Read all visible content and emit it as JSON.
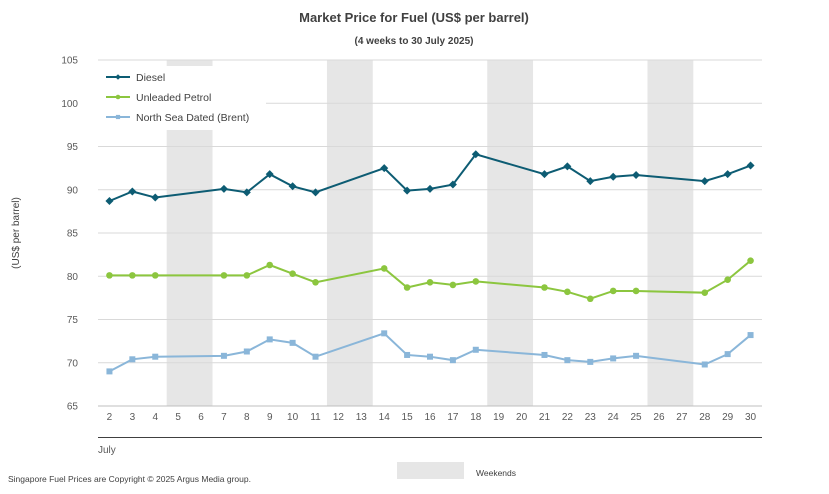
{
  "chart_data": {
    "type": "line",
    "title": "Market Price for Fuel (US$ per barrel)",
    "subtitle": "(4 weeks to 30 July 2025)",
    "ylabel": "(US$ per barrel)",
    "xlabel": "July",
    "ylim": [
      65,
      105
    ],
    "yticks": [
      65,
      70,
      75,
      80,
      85,
      90,
      95,
      100,
      105
    ],
    "xticks": [
      2,
      3,
      4,
      5,
      6,
      7,
      8,
      9,
      10,
      11,
      12,
      13,
      14,
      15,
      16,
      17,
      18,
      19,
      20,
      21,
      22,
      23,
      24,
      25,
      26,
      27,
      28,
      29,
      30
    ],
    "weekends": [
      [
        5,
        6
      ],
      [
        12,
        13
      ],
      [
        19,
        20
      ],
      [
        26,
        27
      ]
    ],
    "grid": true,
    "legend_position": "top-left",
    "series": [
      {
        "name": "Diesel",
        "color": "#0d5c73",
        "marker": "diamond",
        "x": [
          2,
          3,
          4,
          7,
          8,
          9,
          10,
          11,
          14,
          15,
          16,
          17,
          18,
          21,
          22,
          23,
          24,
          25,
          28,
          29,
          30
        ],
        "values": [
          88.7,
          89.8,
          89.1,
          90.1,
          89.7,
          91.8,
          90.4,
          89.7,
          92.5,
          89.9,
          90.1,
          90.6,
          94.1,
          91.8,
          92.7,
          91.0,
          91.5,
          91.7,
          91.0,
          91.8,
          92.8
        ]
      },
      {
        "name": "Unleaded Petrol",
        "color": "#8cc63f",
        "marker": "circle",
        "x": [
          2,
          3,
          4,
          7,
          8,
          9,
          10,
          11,
          14,
          15,
          16,
          17,
          18,
          21,
          22,
          23,
          24,
          25,
          28,
          29,
          30
        ],
        "values": [
          80.1,
          80.1,
          80.1,
          80.1,
          80.1,
          81.3,
          80.3,
          79.3,
          80.9,
          78.7,
          79.3,
          79.0,
          79.4,
          78.7,
          78.2,
          77.4,
          78.3,
          78.3,
          78.1,
          79.6,
          81.8
        ]
      },
      {
        "name": "North Sea Dated (Brent)",
        "color": "#8ab6d9",
        "marker": "square",
        "x": [
          2,
          3,
          4,
          7,
          8,
          9,
          10,
          11,
          14,
          15,
          16,
          17,
          18,
          21,
          22,
          23,
          24,
          25,
          28,
          29,
          30
        ],
        "values": [
          69.0,
          70.4,
          70.7,
          70.8,
          71.3,
          72.7,
          72.3,
          70.7,
          73.4,
          70.9,
          70.7,
          70.3,
          71.5,
          70.9,
          70.3,
          70.1,
          70.5,
          70.8,
          69.8,
          71.0,
          73.2
        ]
      }
    ],
    "weekend_legend": "Weekends"
  },
  "footer": {
    "copyright": "Singapore Fuel Prices are Copyright © 2025 Argus Media group."
  }
}
